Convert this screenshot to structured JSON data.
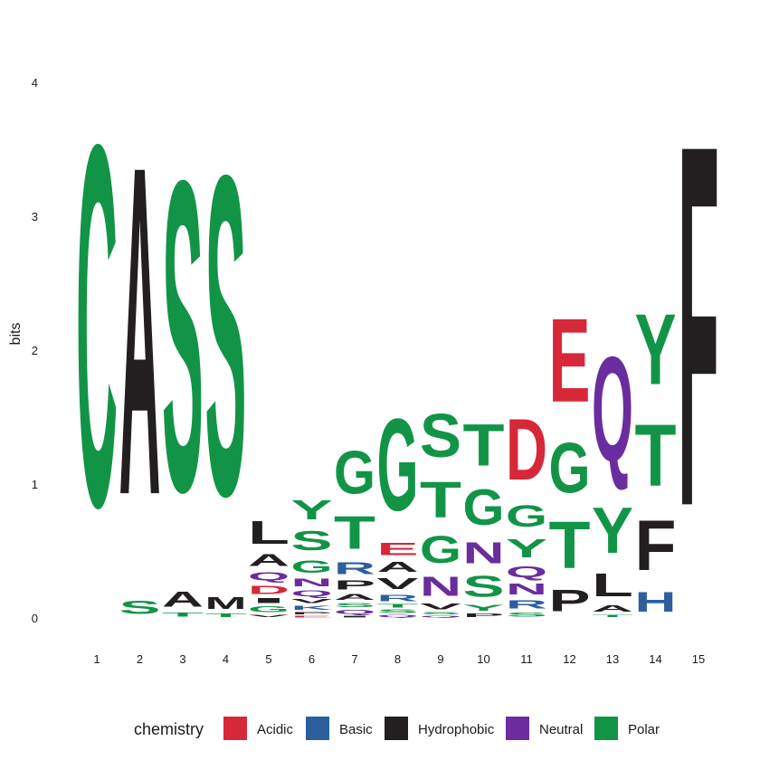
{
  "chart_data": {
    "type": "sequence-logo",
    "ylabel": "bits",
    "ylim": [
      0,
      4.32
    ],
    "yticks": [
      "0",
      "1",
      "2",
      "3",
      "4"
    ],
    "positions": [
      "1",
      "2",
      "3",
      "4",
      "5",
      "6",
      "7",
      "8",
      "9",
      "10",
      "11",
      "12",
      "13",
      "14",
      "15"
    ],
    "legend": {
      "title": "chemistry",
      "placement": "bottom",
      "entries": [
        {
          "name": "Acidic",
          "color": "#d62839"
        },
        {
          "name": "Basic",
          "color": "#2c5f9e"
        },
        {
          "name": "Hydrophobic",
          "color": "#231f20"
        },
        {
          "name": "Neutral",
          "color": "#6a2c9e"
        },
        {
          "name": "Polar",
          "color": "#129447"
        }
      ]
    },
    "stacks": [
      [
        {
          "letter": "C",
          "bits": 4.32,
          "chemistry": "Polar"
        }
      ],
      [
        {
          "letter": "S",
          "bits": 0.16,
          "chemistry": "Polar"
        },
        {
          "letter": "A",
          "bits": 3.93,
          "chemistry": "Hydrophobic"
        }
      ],
      [
        {
          "letter": "T",
          "bits": 0.05,
          "chemistry": "Polar"
        },
        {
          "letter": "A",
          "bits": 0.18,
          "chemistry": "Hydrophobic"
        },
        {
          "letter": "S",
          "bits": 3.71,
          "chemistry": "Polar"
        }
      ],
      [
        {
          "letter": "T",
          "bits": 0.04,
          "chemistry": "Polar"
        },
        {
          "letter": "M",
          "bits": 0.14,
          "chemistry": "Hydrophobic"
        },
        {
          "letter": "S",
          "bits": 3.82,
          "chemistry": "Polar"
        }
      ],
      [
        {
          "letter": "V",
          "bits": 0.03,
          "chemistry": "Hydrophobic"
        },
        {
          "letter": "G",
          "bits": 0.07,
          "chemistry": "Polar"
        },
        {
          "letter": "I",
          "bits": 0.06,
          "chemistry": "Hydrophobic"
        },
        {
          "letter": "D",
          "bits": 0.1,
          "chemistry": "Acidic"
        },
        {
          "letter": "Q",
          "bits": 0.1,
          "chemistry": "Neutral"
        },
        {
          "letter": "A",
          "bits": 0.14,
          "chemistry": "Hydrophobic"
        },
        {
          "letter": "L",
          "bits": 0.27,
          "chemistry": "Hydrophobic"
        }
      ],
      [
        {
          "letter": "E",
          "bits": 0.02,
          "chemistry": "Acidic"
        },
        {
          "letter": "P",
          "bits": 0.03,
          "chemistry": "Hydrophobic"
        },
        {
          "letter": "K",
          "bits": 0.05,
          "chemistry": "Basic"
        },
        {
          "letter": "V",
          "bits": 0.05,
          "chemistry": "Hydrophobic"
        },
        {
          "letter": "Q",
          "bits": 0.07,
          "chemistry": "Neutral"
        },
        {
          "letter": "N",
          "bits": 0.09,
          "chemistry": "Neutral"
        },
        {
          "letter": "G",
          "bits": 0.15,
          "chemistry": "Polar"
        },
        {
          "letter": "S",
          "bits": 0.23,
          "chemistry": "Polar"
        },
        {
          "letter": "Y",
          "bits": 0.23,
          "chemistry": "Polar"
        }
      ],
      [
        {
          "letter": "I",
          "bits": 0.02,
          "chemistry": "Hydrophobic"
        },
        {
          "letter": "Q",
          "bits": 0.05,
          "chemistry": "Neutral"
        },
        {
          "letter": "S",
          "bits": 0.05,
          "chemistry": "Polar"
        },
        {
          "letter": "A",
          "bits": 0.07,
          "chemistry": "Hydrophobic"
        },
        {
          "letter": "P",
          "bits": 0.11,
          "chemistry": "Hydrophobic"
        },
        {
          "letter": "R",
          "bits": 0.14,
          "chemistry": "Basic"
        },
        {
          "letter": "T",
          "bits": 0.39,
          "chemistry": "Polar"
        },
        {
          "letter": "G",
          "bits": 0.51,
          "chemistry": "Polar"
        }
      ],
      [
        {
          "letter": "Q",
          "bits": 0.03,
          "chemistry": "Neutral"
        },
        {
          "letter": "S",
          "bits": 0.04,
          "chemistry": "Polar"
        },
        {
          "letter": "T",
          "bits": 0.04,
          "chemistry": "Polar"
        },
        {
          "letter": "R",
          "bits": 0.08,
          "chemistry": "Basic"
        },
        {
          "letter": "V",
          "bits": 0.13,
          "chemistry": "Hydrophobic"
        },
        {
          "letter": "A",
          "bits": 0.12,
          "chemistry": "Hydrophobic"
        },
        {
          "letter": "E",
          "bits": 0.15,
          "chemistry": "Acidic"
        },
        {
          "letter": "G",
          "bits": 1.1,
          "chemistry": "Polar"
        }
      ],
      [
        {
          "letter": "Q",
          "bits": 0.02,
          "chemistry": "Neutral"
        },
        {
          "letter": "S",
          "bits": 0.03,
          "chemistry": "Polar"
        },
        {
          "letter": "V",
          "bits": 0.07,
          "chemistry": "Hydrophobic"
        },
        {
          "letter": "N",
          "bits": 0.23,
          "chemistry": "Neutral"
        },
        {
          "letter": "G",
          "bits": 0.32,
          "chemistry": "Polar"
        },
        {
          "letter": "T",
          "bits": 0.43,
          "chemistry": "Polar"
        },
        {
          "letter": "S",
          "bits": 0.52,
          "chemistry": "Polar"
        }
      ],
      [
        {
          "letter": "P",
          "bits": 0.04,
          "chemistry": "Hydrophobic"
        },
        {
          "letter": "Y",
          "bits": 0.07,
          "chemistry": "Polar"
        },
        {
          "letter": "S",
          "bits": 0.25,
          "chemistry": "Polar"
        },
        {
          "letter": "N",
          "bits": 0.25,
          "chemistry": "Neutral"
        },
        {
          "letter": "G",
          "bits": 0.43,
          "chemistry": "Polar"
        },
        {
          "letter": "T",
          "bits": 0.5,
          "chemistry": "Polar"
        }
      ],
      [
        {
          "letter": "S",
          "bits": 0.05,
          "chemistry": "Polar"
        },
        {
          "letter": "R",
          "bits": 0.1,
          "chemistry": "Basic"
        },
        {
          "letter": "N",
          "bits": 0.13,
          "chemistry": "Neutral"
        },
        {
          "letter": "Q",
          "bits": 0.13,
          "chemistry": "Neutral"
        },
        {
          "letter": "Y",
          "bits": 0.22,
          "chemistry": "Polar"
        },
        {
          "letter": "G",
          "bits": 0.26,
          "chemistry": "Polar"
        },
        {
          "letter": "D",
          "bits": 0.73,
          "chemistry": "Acidic"
        }
      ],
      [
        {
          "letter": "P",
          "bits": 0.26,
          "chemistry": "Hydrophobic"
        },
        {
          "letter": "T",
          "bits": 0.56,
          "chemistry": "Polar"
        },
        {
          "letter": "G",
          "bits": 0.6,
          "chemistry": "Polar"
        },
        {
          "letter": "E",
          "bits": 1.0,
          "chemistry": "Acidic"
        }
      ],
      [
        {
          "letter": "T",
          "bits": 0.03,
          "chemistry": "Polar"
        },
        {
          "letter": "A",
          "bits": 0.08,
          "chemistry": "Hydrophobic"
        },
        {
          "letter": "L",
          "bits": 0.27,
          "chemistry": "Hydrophobic"
        },
        {
          "letter": "Y",
          "bits": 0.55,
          "chemistry": "Polar"
        },
        {
          "letter": "Q",
          "bits": 1.25,
          "chemistry": "Neutral"
        }
      ],
      [
        {
          "letter": "H",
          "bits": 0.24,
          "chemistry": "Basic"
        },
        {
          "letter": "F",
          "bits": 0.6,
          "chemistry": "Hydrophobic"
        },
        {
          "letter": "T",
          "bits": 0.74,
          "chemistry": "Polar"
        },
        {
          "letter": "Y",
          "bits": 0.84,
          "chemistry": "Polar"
        }
      ],
      [
        {
          "letter": "F",
          "bits": 4.32,
          "chemistry": "Hydrophobic"
        }
      ]
    ]
  }
}
